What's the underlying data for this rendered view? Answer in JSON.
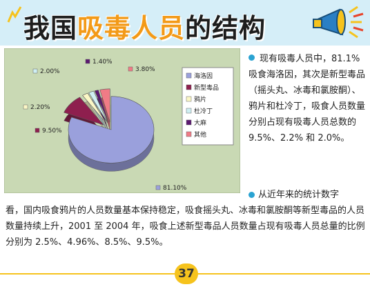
{
  "header": {
    "title_prefix": "我国",
    "title_highlight": "吸毒人员",
    "title_suffix": "的结构"
  },
  "chart_data": {
    "type": "pie",
    "exploded": true,
    "categories": [
      "海洛因",
      "新型毒品",
      "鸦片",
      "杜冷丁",
      "大麻",
      "其他"
    ],
    "values": [
      81.1,
      9.5,
      2.2,
      2.0,
      1.4,
      3.8
    ],
    "data_labels": [
      "81.10%",
      "9.50%",
      "2.20%",
      "2.00%",
      "1.40%",
      "3.80%"
    ],
    "colors": [
      "#9aa0dc",
      "#8e1f4e",
      "#fbf7c6",
      "#cfeff3",
      "#5b1870",
      "#f07b86"
    ],
    "legend_position": "right",
    "background": "#c9d9b4"
  },
  "text": {
    "para1": "现有吸毒人员中，81.1% 吸食海洛因，其次是新型毒品（摇头丸、冰毒和氯胺酮）、鸦片和杜冷丁，吸食人员数量分别占现有吸毒人员总数的 9.5%、2.2% 和 2.0%。",
    "para2_start": "从近年来的统计数字",
    "para2_rest": "看，国内吸食鸦片的人员数量基本保持稳定，吸食摇头丸、冰毒和氯胺酮等新型毒品的人员数量持续上升，2001 至 2004 年，吸食上述新型毒品人员数量占现有吸毒人员总量的比例分别为 2.5%、4.96%、8.5%、9.5%。"
  },
  "footer": {
    "page_number": "37"
  }
}
